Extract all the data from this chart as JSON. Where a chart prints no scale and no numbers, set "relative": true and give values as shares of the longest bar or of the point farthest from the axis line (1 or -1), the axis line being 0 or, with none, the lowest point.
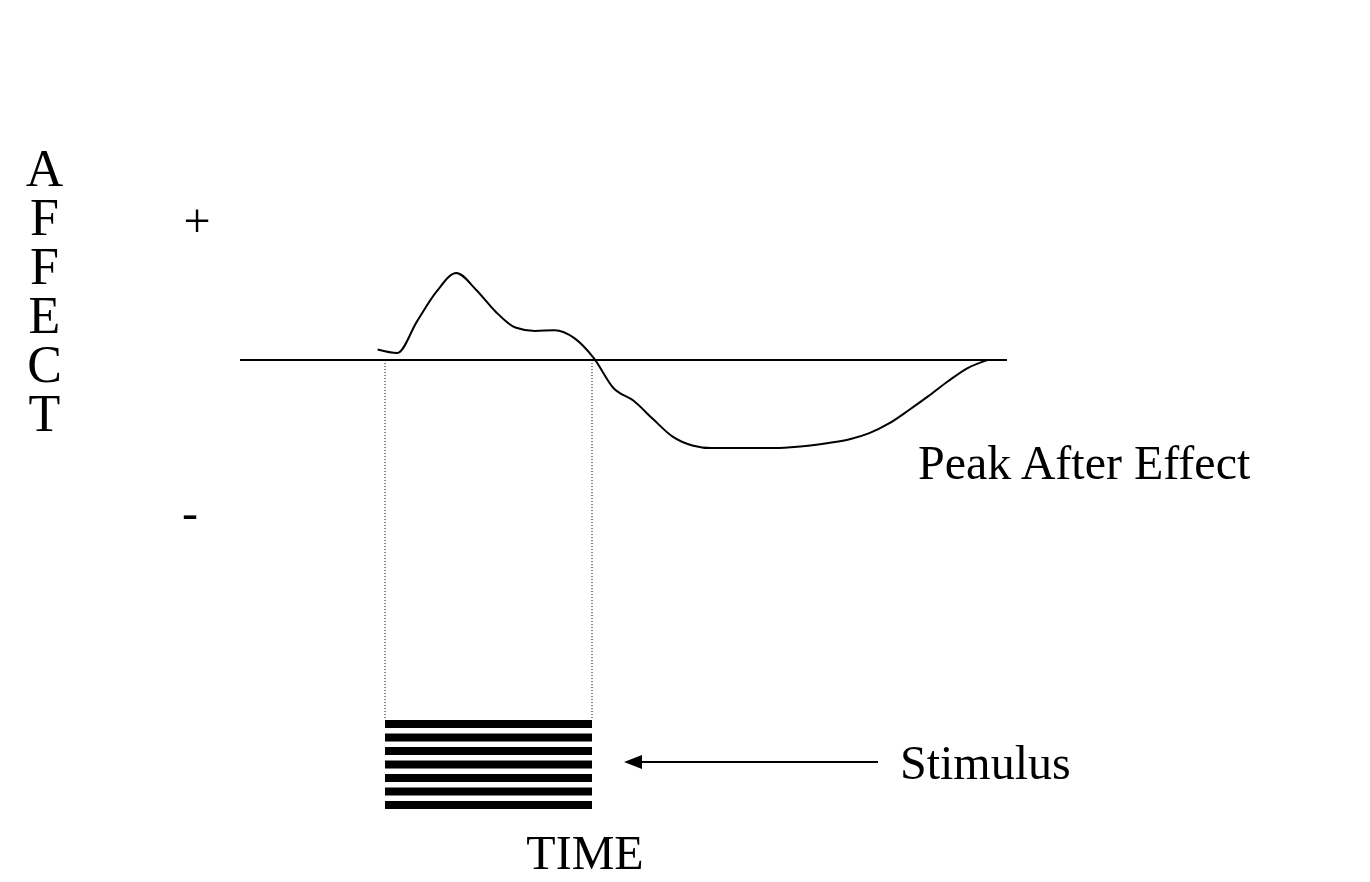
{
  "chart_data": {
    "type": "line",
    "relative": true,
    "ylabel": "AFFECT",
    "marker": "none",
    "line_style": "solid",
    "categories": [
      null,
      null,
      null,
      null,
      null,
      null,
      null,
      null,
      null,
      null,
      null,
      null,
      null,
      null,
      null,
      null,
      null,
      null,
      null,
      null,
      null,
      null,
      null,
      null,
      null,
      null,
      null,
      null,
      null,
      null,
      null,
      null,
      null,
      null,
      null,
      null,
      null,
      null,
      null,
      null
    ],
    "series": [
      {
        "color": "#000000",
        "values": [
          null,
          null,
          null,
          null,
          null,
          null,
          null,
          0.12,
          0.08,
          0.44,
          0.78,
          0.99,
          0.8,
          0.55,
          0.37,
          0.33,
          0.34,
          0.25,
          0.02,
          -0.32,
          -0.46,
          -0.67,
          -0.87,
          -0.97,
          -1,
          -1,
          -1,
          -1,
          -0.99,
          -0.97,
          -0.94,
          -0.9,
          -0.83,
          -0.72,
          -0.57,
          -0.41,
          -0.24,
          -0.09,
          0,
          null
        ]
      }
    ],
    "annotations": [
      "+",
      "-",
      "Peak After Effect",
      "Stimulus",
      "TIME"
    ]
  }
}
